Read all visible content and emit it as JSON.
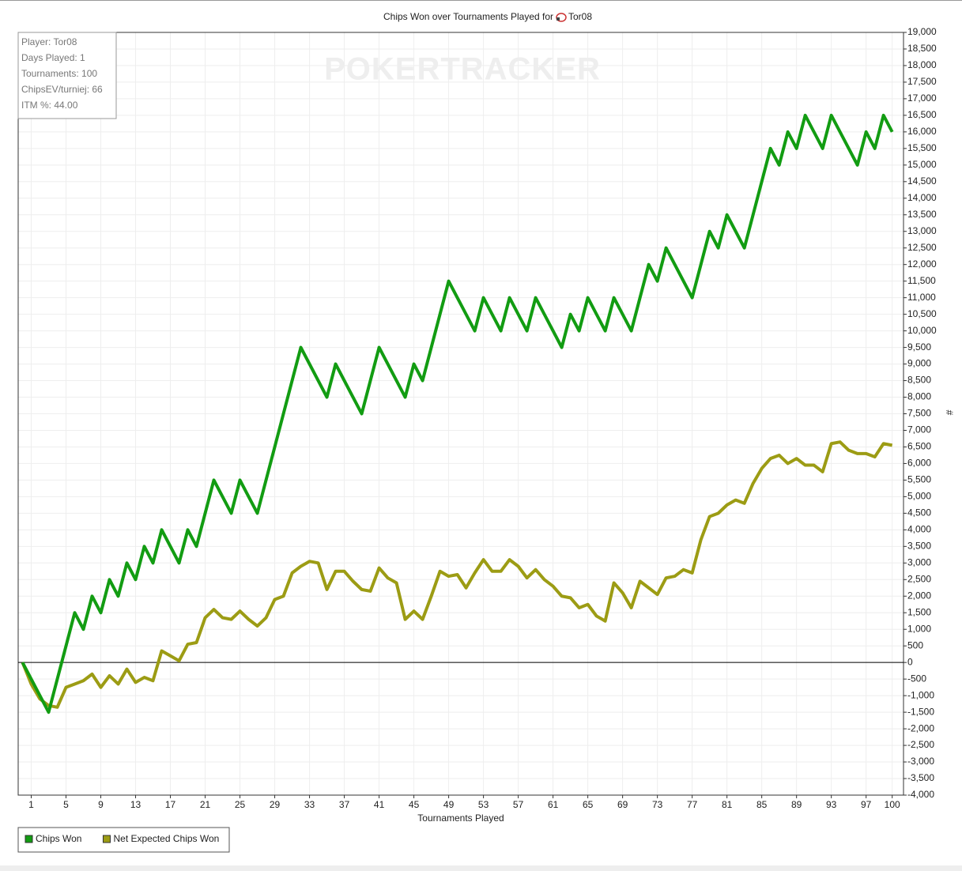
{
  "chart_data": {
    "type": "line",
    "title": "Chips Won over Tournaments Played for",
    "player_name": "Tor08",
    "watermark": "POKERTRACKER",
    "info_box": [
      "Player: Tor08",
      "Days Played: 1",
      "Tournaments: 100",
      "ChipsEV/turniej: 66",
      "ITM %: 44.00"
    ],
    "x_label": "Tournaments Played",
    "y_label": "#",
    "grid": true,
    "zero_line": true,
    "legend_position": "bottom-left",
    "x": [
      0,
      1,
      2,
      3,
      4,
      5,
      6,
      7,
      8,
      9,
      10,
      11,
      12,
      13,
      14,
      15,
      16,
      17,
      18,
      19,
      20,
      21,
      22,
      23,
      24,
      25,
      26,
      27,
      28,
      29,
      30,
      31,
      32,
      33,
      34,
      35,
      36,
      37,
      38,
      39,
      40,
      41,
      42,
      43,
      44,
      45,
      46,
      47,
      48,
      49,
      50,
      51,
      52,
      53,
      54,
      55,
      56,
      57,
      58,
      59,
      60,
      61,
      62,
      63,
      64,
      65,
      66,
      67,
      68,
      69,
      70,
      71,
      72,
      73,
      74,
      75,
      76,
      77,
      78,
      79,
      80,
      81,
      82,
      83,
      84,
      85,
      86,
      87,
      88,
      89,
      90,
      91,
      92,
      93,
      94,
      95,
      96,
      97,
      98,
      99,
      100
    ],
    "xlim": [
      -0.5,
      101.3
    ],
    "xticks": [
      1,
      5,
      9,
      13,
      17,
      21,
      25,
      29,
      33,
      37,
      41,
      45,
      49,
      53,
      57,
      61,
      65,
      69,
      73,
      77,
      81,
      85,
      89,
      93,
      97,
      100
    ],
    "ylim": [
      -4000,
      19000
    ],
    "yticks": [
      {
        "value": -4000,
        "label": "-4,000"
      },
      {
        "value": -3500,
        "label": "-3,500"
      },
      {
        "value": -3000,
        "label": "-3,000"
      },
      {
        "value": -2500,
        "label": "-2,500"
      },
      {
        "value": -2000,
        "label": "-2,000"
      },
      {
        "value": -1500,
        "label": "-1,500"
      },
      {
        "value": -1000,
        "label": "-1,000"
      },
      -500,
      0,
      500,
      {
        "value": 1000,
        "label": "1,000"
      },
      {
        "value": 1500,
        "label": "1,500"
      },
      {
        "value": 2000,
        "label": "2,000"
      },
      {
        "value": 2500,
        "label": "2,500"
      },
      {
        "value": 3000,
        "label": "3,000"
      },
      {
        "value": 3500,
        "label": "3,500"
      },
      {
        "value": 4000,
        "label": "4,000"
      },
      {
        "value": 4500,
        "label": "4,500"
      },
      {
        "value": 5000,
        "label": "5,000"
      },
      {
        "value": 5500,
        "label": "5,500"
      },
      {
        "value": 6000,
        "label": "6,000"
      },
      {
        "value": 6500,
        "label": "6,500"
      },
      {
        "value": 7000,
        "label": "7,000"
      },
      {
        "value": 7500,
        "label": "7,500"
      },
      {
        "value": 8000,
        "label": "8,000"
      },
      {
        "value": 8500,
        "label": "8,500"
      },
      {
        "value": 9000,
        "label": "9,000"
      },
      {
        "value": 9500,
        "label": "9,500"
      },
      {
        "value": 10000,
        "label": "10,000"
      },
      {
        "value": 10500,
        "label": "10,500"
      },
      {
        "value": 11000,
        "label": "11,000"
      },
      {
        "value": 11500,
        "label": "11,500"
      },
      {
        "value": 12000,
        "label": "12,000"
      },
      {
        "value": 12500,
        "label": "12,500"
      },
      {
        "value": 13000,
        "label": "13,000"
      },
      {
        "value": 13500,
        "label": "13,500"
      },
      {
        "value": 14000,
        "label": "14,000"
      },
      {
        "value": 14500,
        "label": "14,500"
      },
      {
        "value": 15000,
        "label": "15,000"
      },
      {
        "value": 15500,
        "label": "15,500"
      },
      {
        "value": 16000,
        "label": "16,000"
      },
      {
        "value": 16500,
        "label": "16,500"
      },
      {
        "value": 17000,
        "label": "17,000"
      },
      {
        "value": 17500,
        "label": "17,500"
      },
      {
        "value": 18000,
        "label": "18,000"
      },
      {
        "value": 18500,
        "label": "18,500"
      },
      {
        "value": 19000,
        "label": "19,000"
      }
    ],
    "series": [
      {
        "name": "Chips Won",
        "color": "#129c12",
        "values": [
          0,
          -500,
          -1000,
          -1500,
          -500,
          500,
          1500,
          1000,
          2000,
          1500,
          2500,
          2000,
          3000,
          2500,
          3500,
          3000,
          4000,
          3500,
          3000,
          4000,
          3500,
          4500,
          5500,
          5000,
          4500,
          5500,
          5000,
          4500,
          5500,
          6500,
          7500,
          8500,
          9500,
          9000,
          8500,
          8000,
          9000,
          8500,
          8000,
          7500,
          8500,
          9500,
          9000,
          8500,
          8000,
          9000,
          8500,
          9500,
          10500,
          11500,
          11000,
          10500,
          10000,
          11000,
          10500,
          10000,
          11000,
          10500,
          10000,
          11000,
          10500,
          10000,
          9500,
          10500,
          10000,
          11000,
          10500,
          10000,
          11000,
          10500,
          10000,
          11000,
          12000,
          11500,
          12500,
          12000,
          11500,
          11000,
          12000,
          13000,
          12500,
          13500,
          13000,
          12500,
          13500,
          14500,
          15500,
          15000,
          16000,
          15500,
          16500,
          16000,
          15500,
          16500,
          16000,
          15500,
          15000,
          16000,
          15500,
          16500,
          16000
        ]
      },
      {
        "name": "Net Expected Chips Won",
        "color": "#9c9c14",
        "values": [
          0,
          -650,
          -1100,
          -1300,
          -1350,
          -750,
          -650,
          -550,
          -350,
          -750,
          -400,
          -650,
          -200,
          -600,
          -450,
          -550,
          350,
          200,
          50,
          550,
          600,
          1350,
          1600,
          1350,
          1300,
          1550,
          1300,
          1100,
          1350,
          1900,
          2000,
          2700,
          2900,
          3050,
          3000,
          2200,
          2750,
          2750,
          2450,
          2200,
          2150,
          2850,
          2550,
          2400,
          1300,
          1550,
          1300,
          2000,
          2750,
          2600,
          2650,
          2250,
          2700,
          3100,
          2750,
          2750,
          3100,
          2900,
          2550,
          2800,
          2500,
          2300,
          2000,
          1950,
          1650,
          1750,
          1400,
          1250,
          2400,
          2100,
          1650,
          2450,
          2250,
          2050,
          2550,
          2600,
          2800,
          2700,
          3700,
          4400,
          4500,
          4750,
          4900,
          4800,
          5400,
          5850,
          6150,
          6250,
          6000,
          6150,
          5950,
          5950,
          5750,
          6600,
          6650,
          6400,
          6300,
          6300,
          6200,
          6600,
          6550
        ]
      }
    ]
  }
}
